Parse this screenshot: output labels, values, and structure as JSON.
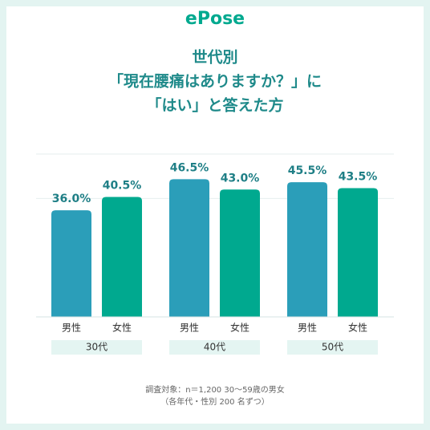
{
  "chart_data": {
    "type": "bar",
    "brand": "ePose",
    "title": [
      "世代別",
      "「現在腰痛はありますか？」に",
      "「はい」と答えた方"
    ],
    "categories": [
      "30代",
      "40代",
      "50代"
    ],
    "series": [
      {
        "name": "男性",
        "color": "#2b9eb9",
        "values": [
          36.0,
          46.5,
          45.5
        ],
        "value_labels": [
          "36.0%",
          "46.5%",
          "45.5%"
        ]
      },
      {
        "name": "女性",
        "color": "#00a98f",
        "values": [
          40.5,
          43.0,
          43.5
        ],
        "value_labels": [
          "40.5%",
          "43.0%",
          "43.5%"
        ]
      }
    ],
    "ylim": [
      0,
      55
    ],
    "yticks": [
      0,
      40,
      55
    ],
    "grid": true,
    "notes": [
      "調査対象：n＝1,200 30～59歳の男女",
      "（各年代・性別 200 名ずつ）"
    ]
  }
}
